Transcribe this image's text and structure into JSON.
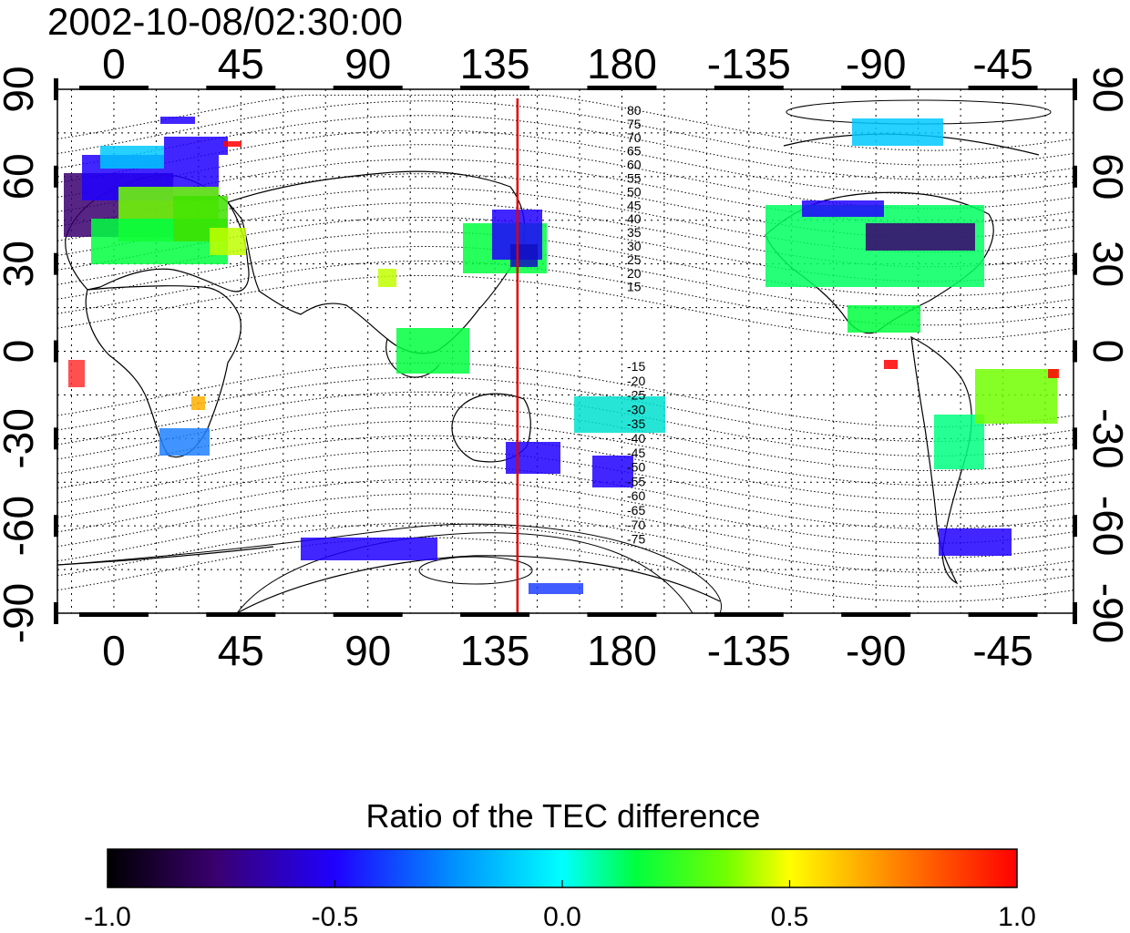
{
  "timestamp": "2002-10-08/02:30:00",
  "map": {
    "x_ticks": [
      "0",
      "45",
      "90",
      "135",
      "180",
      "-135",
      "-90",
      "-45"
    ],
    "x_tick_lon": [
      0,
      45,
      90,
      135,
      180,
      225,
      270,
      315
    ],
    "lon_range": [
      -20,
      340
    ],
    "y_ticks": [
      "90",
      "60",
      "30",
      "0",
      "-30",
      "-60",
      "-90"
    ],
    "y_tick_lat": [
      90,
      60,
      30,
      0,
      -30,
      -60,
      -90
    ],
    "lat_range": [
      -90,
      90
    ],
    "grid": true,
    "meridian_marker": {
      "lon": 143,
      "color": "#e00000"
    },
    "mlat_labels_north": [
      "80",
      "75",
      "70",
      "65",
      "60",
      "55",
      "50",
      "45",
      "40",
      "35",
      "30",
      "25",
      "20",
      "15"
    ],
    "mlat_labels_south": [
      "-15",
      "-20",
      "-25",
      "-30",
      "-35",
      "-40",
      "-45",
      "-50",
      "-55",
      "-60",
      "-65",
      "-70",
      "-75"
    ]
  },
  "colorbar": {
    "title": "Ratio of the TEC difference",
    "ticks": [
      "-1.0",
      "-0.5",
      "0.0",
      "0.5",
      "1.0"
    ],
    "range": [
      -1.0,
      1.0
    ],
    "colors": [
      "#000000",
      "#3a0070",
      "#2000ff",
      "#0090ff",
      "#00ffff",
      "#00ff40",
      "#70ff00",
      "#ffff00",
      "#ff8000",
      "#ff0000"
    ]
  }
}
